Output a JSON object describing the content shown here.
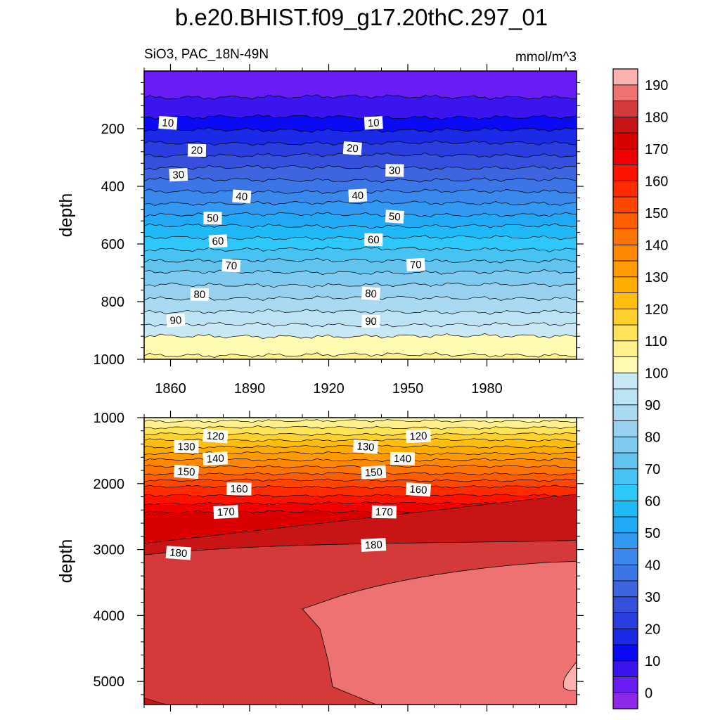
{
  "page": {
    "title": "b.e20.BHIST.f09_g17.20thC.297_01"
  },
  "chart_data": [
    {
      "type": "heatmap",
      "panel": "upper",
      "left_subtitle": "SiO3, PAC_18N-49N",
      "right_subtitle": "mmol/m^3",
      "ylabel": "depth",
      "xlabel": "",
      "xlim": [
        1850,
        2014
      ],
      "ylim": [
        1000,
        0
      ],
      "y_reversed": true,
      "xticks": [
        1860,
        1890,
        1920,
        1950,
        1980
      ],
      "xtick_labels": [
        "1860",
        "1890",
        "1920",
        "1950",
        "1980"
      ],
      "yticks": [
        200,
        400,
        600,
        800,
        1000
      ],
      "ytick_labels": [
        "200",
        "400",
        "600",
        "800",
        "1000"
      ],
      "contour_boundaries": [
        {
          "value": 5,
          "depth": 90
        },
        {
          "value": 10,
          "depth": 160
        },
        {
          "value": 15,
          "depth": 205
        },
        {
          "value": 20,
          "depth": 250
        },
        {
          "value": 25,
          "depth": 292
        },
        {
          "value": 30,
          "depth": 335
        },
        {
          "value": 35,
          "depth": 378
        },
        {
          "value": 40,
          "depth": 418
        },
        {
          "value": 45,
          "depth": 458
        },
        {
          "value": 50,
          "depth": 498
        },
        {
          "value": 55,
          "depth": 538
        },
        {
          "value": 60,
          "depth": 578
        },
        {
          "value": 65,
          "depth": 618
        },
        {
          "value": 70,
          "depth": 658
        },
        {
          "value": 75,
          "depth": 698
        },
        {
          "value": 80,
          "depth": 742
        },
        {
          "value": 85,
          "depth": 788
        },
        {
          "value": 90,
          "depth": 835
        },
        {
          "value": 95,
          "depth": 880
        },
        {
          "value": 100,
          "depth": 920
        },
        {
          "value": 105,
          "depth": 985
        }
      ],
      "contour_labels": [
        {
          "text": "10",
          "year": 1859,
          "depth": 180
        },
        {
          "text": "10",
          "year": 1937,
          "depth": 180
        },
        {
          "text": "20",
          "year": 1870,
          "depth": 275
        },
        {
          "text": "20",
          "year": 1929,
          "depth": 268
        },
        {
          "text": "30",
          "year": 1863,
          "depth": 360
        },
        {
          "text": "30",
          "year": 1945,
          "depth": 345
        },
        {
          "text": "40",
          "year": 1887,
          "depth": 435
        },
        {
          "text": "40",
          "year": 1931,
          "depth": 432
        },
        {
          "text": "50",
          "year": 1876,
          "depth": 510
        },
        {
          "text": "50",
          "year": 1945,
          "depth": 505
        },
        {
          "text": "60",
          "year": 1878,
          "depth": 590
        },
        {
          "text": "60",
          "year": 1937,
          "depth": 585
        },
        {
          "text": "70",
          "year": 1883,
          "depth": 675
        },
        {
          "text": "70",
          "year": 1953,
          "depth": 672
        },
        {
          "text": "80",
          "year": 1871,
          "depth": 775
        },
        {
          "text": "80",
          "year": 1936,
          "depth": 772
        },
        {
          "text": "90",
          "year": 1862,
          "depth": 865
        },
        {
          "text": "90",
          "year": 1936,
          "depth": 868
        }
      ]
    },
    {
      "type": "heatmap",
      "panel": "lower",
      "ylabel": "depth",
      "xlabel": "",
      "xlim": [
        1850,
        2014
      ],
      "ylim": [
        5350,
        1000
      ],
      "y_reversed": true,
      "yticks": [
        1000,
        2000,
        3000,
        4000,
        5000
      ],
      "ytick_labels": [
        "1000",
        "2000",
        "3000",
        "4000",
        "5000"
      ],
      "contour_boundaries": [
        {
          "value": 105,
          "depth": 1050
        },
        {
          "value": 110,
          "depth": 1150
        },
        {
          "value": 115,
          "depth": 1250
        },
        {
          "value": 120,
          "depth": 1340
        },
        {
          "value": 125,
          "depth": 1440
        },
        {
          "value": 130,
          "depth": 1540
        },
        {
          "value": 135,
          "depth": 1640
        },
        {
          "value": 140,
          "depth": 1740
        },
        {
          "value": 145,
          "depth": 1850
        },
        {
          "value": 150,
          "depth": 1950
        },
        {
          "value": 155,
          "depth": 2050
        },
        {
          "value": 160,
          "depth": 2180
        },
        {
          "value": 165,
          "depth": 2300
        },
        {
          "value": 170,
          "depth": 2430
        },
        {
          "value": 175,
          "depth": 2640
        }
      ],
      "contour_labels": [
        {
          "text": "120",
          "year": 1877,
          "depth": 1280
        },
        {
          "text": "120",
          "year": 1954,
          "depth": 1280
        },
        {
          "text": "130",
          "year": 1866,
          "depth": 1440
        },
        {
          "text": "130",
          "year": 1934,
          "depth": 1440
        },
        {
          "text": "140",
          "year": 1877,
          "depth": 1620
        },
        {
          "text": "140",
          "year": 1948,
          "depth": 1620
        },
        {
          "text": "150",
          "year": 1866,
          "depth": 1820
        },
        {
          "text": "150",
          "year": 1937,
          "depth": 1830
        },
        {
          "text": "160",
          "year": 1886,
          "depth": 2080
        },
        {
          "text": "160",
          "year": 1954,
          "depth": 2090
        },
        {
          "text": "170",
          "year": 1881,
          "depth": 2430
        },
        {
          "text": "170",
          "year": 1941,
          "depth": 2430
        },
        {
          "text": "180",
          "year": 1863,
          "depth": 3050
        },
        {
          "text": "180",
          "year": 1937,
          "depth": 2930
        }
      ]
    }
  ],
  "colorbar": {
    "labels": [
      "0",
      "10",
      "20",
      "30",
      "40",
      "50",
      "60",
      "70",
      "80",
      "90",
      "100",
      "110",
      "120",
      "130",
      "140",
      "150",
      "160",
      "170",
      "180",
      "190"
    ],
    "label_values": [
      0,
      10,
      20,
      30,
      40,
      50,
      60,
      70,
      80,
      90,
      100,
      110,
      120,
      130,
      140,
      150,
      160,
      170,
      180,
      190
    ],
    "levels": [
      -5,
      0,
      5,
      10,
      15,
      20,
      25,
      30,
      35,
      40,
      45,
      50,
      55,
      60,
      65,
      70,
      75,
      80,
      85,
      90,
      95,
      100,
      105,
      110,
      115,
      120,
      125,
      130,
      135,
      140,
      145,
      150,
      155,
      160,
      165,
      170,
      175,
      180,
      185,
      190,
      195
    ],
    "colors": [
      "#8c28e8",
      "#6a1cf5",
      "#3c14f0",
      "#0a0af5",
      "#1a2ae6",
      "#2a3ee0",
      "#3550dd",
      "#3e64e0",
      "#3c76e6",
      "#3a88ec",
      "#3299f2",
      "#20aaf5",
      "#1ebaf8",
      "#2cc8fa",
      "#46c3f2",
      "#62c4ee",
      "#7ecaf0",
      "#98d1f0",
      "#aad9f2",
      "#bce3f4",
      "#c8e8f6",
      "#fffcb2",
      "#fff08c",
      "#ffe357",
      "#ffd12e",
      "#ffbe0e",
      "#ffac00",
      "#ff9a00",
      "#ff8800",
      "#ff7400",
      "#ff5e00",
      "#ff4600",
      "#ff2c00",
      "#ff1200",
      "#f00000",
      "#db0000",
      "#c81414",
      "#d53a3a",
      "#ee7272",
      "#fcb0b0"
    ]
  }
}
